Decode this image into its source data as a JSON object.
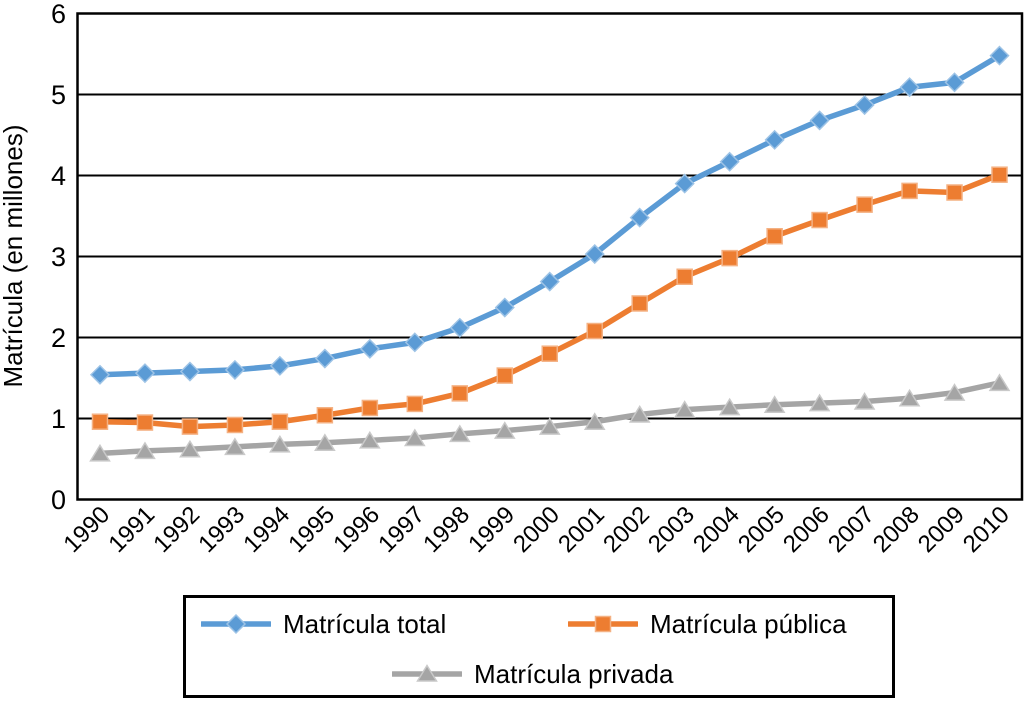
{
  "chart_data": {
    "type": "line",
    "categories": [
      "1990",
      "1991",
      "1992",
      "1993",
      "1994",
      "1995",
      "1996",
      "1997",
      "1998",
      "1999",
      "2000",
      "2001",
      "2002",
      "2003",
      "2004",
      "2005",
      "2006",
      "2007",
      "2008",
      "2009",
      "2010"
    ],
    "series": [
      {
        "name": "Matrícula total",
        "marker": "diamond",
        "color": "#5B9BD5",
        "halo": "#9DC3E6",
        "values": [
          1.54,
          1.56,
          1.58,
          1.6,
          1.65,
          1.74,
          1.86,
          1.94,
          2.12,
          2.37,
          2.69,
          3.03,
          3.48,
          3.9,
          4.17,
          4.44,
          4.68,
          4.87,
          5.09,
          5.15,
          5.48
        ]
      },
      {
        "name": "Matrícula pública",
        "marker": "square",
        "color": "#ED7D31",
        "halo": "#F4B183",
        "values": [
          0.96,
          0.95,
          0.9,
          0.92,
          0.96,
          1.04,
          1.13,
          1.18,
          1.31,
          1.53,
          1.8,
          2.08,
          2.42,
          2.75,
          2.98,
          3.25,
          3.45,
          3.64,
          3.81,
          3.79,
          4.01
        ]
      },
      {
        "name": "Matrícula privada",
        "marker": "triangle",
        "color": "#A5A5A5",
        "halo": "#C9C9C9",
        "values": [
          0.57,
          0.6,
          0.62,
          0.65,
          0.68,
          0.7,
          0.73,
          0.76,
          0.81,
          0.85,
          0.9,
          0.96,
          1.05,
          1.11,
          1.14,
          1.17,
          1.19,
          1.21,
          1.25,
          1.32,
          1.44
        ]
      }
    ],
    "title": "",
    "xlabel": "",
    "ylabel": "Matrícula (en millones)",
    "ylim": [
      0,
      6
    ],
    "yticks": [
      0,
      1,
      2,
      3,
      4,
      5,
      6
    ],
    "grid": true,
    "legend_position": "bottom",
    "axis_color": "#000000"
  }
}
